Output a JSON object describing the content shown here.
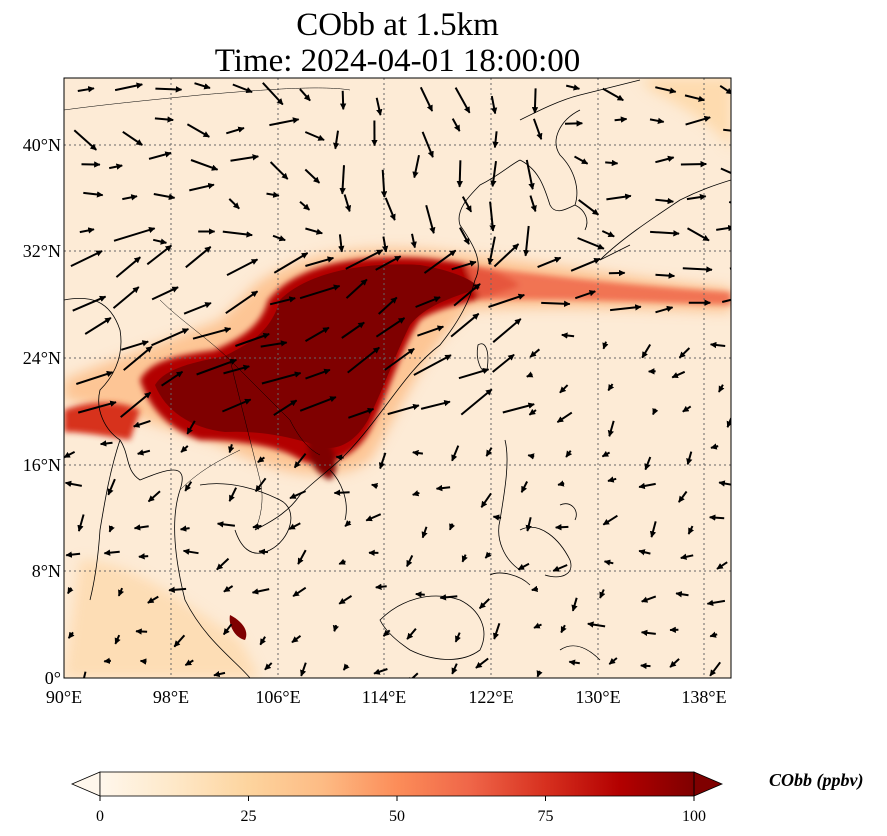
{
  "title": {
    "line1": "CObb at 1.5km",
    "line2": "Time: 2024-04-01 18:00:00"
  },
  "map": {
    "extent": {
      "lon_min": 90,
      "lon_max": 140,
      "lat_min": 0,
      "lat_max": 45
    },
    "x_ticks": [
      "90°E",
      "98°E",
      "106°E",
      "114°E",
      "122°E",
      "130°E",
      "138°E"
    ],
    "x_tick_values": [
      90,
      98,
      106,
      114,
      122,
      130,
      138
    ],
    "y_ticks": [
      "0°",
      "8°N",
      "16°N",
      "24°N",
      "32°N",
      "40°N"
    ],
    "y_tick_values": [
      0,
      8,
      16,
      24,
      32,
      40
    ],
    "gridlines": "dotted",
    "variable": "CObb",
    "level": "1.5km"
  },
  "colorbar": {
    "label": "CObb (ppbv)",
    "ticks": [
      "0",
      "25",
      "50",
      "75",
      "100"
    ],
    "tick_values": [
      0,
      25,
      50,
      75,
      100
    ],
    "vmin": 0,
    "vmax": 100,
    "colormap": "OrRd",
    "colors": [
      "#fff7ec",
      "#fee8c8",
      "#fdd49e",
      "#fdbb84",
      "#fc8d59",
      "#ef6548",
      "#d7301f",
      "#b30000",
      "#7f0000"
    ],
    "extend": "both"
  }
}
